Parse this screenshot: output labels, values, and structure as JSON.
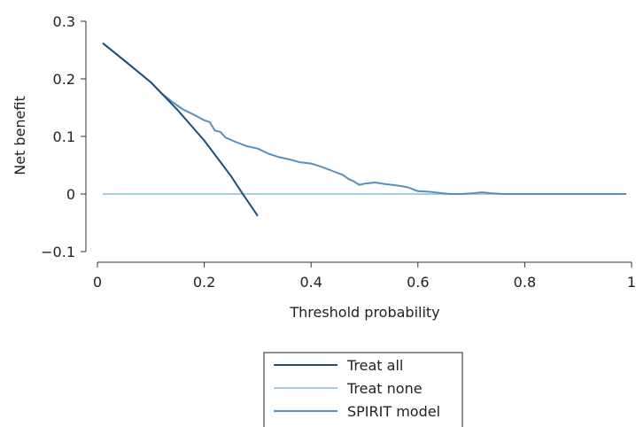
{
  "chart_data": {
    "type": "line",
    "title": "",
    "xlabel": "Threshold probability",
    "ylabel": "Net benefit",
    "xlim": [
      0,
      1
    ],
    "ylim": [
      -0.1,
      0.3
    ],
    "x_ticks": [
      0,
      0.2,
      0.4,
      0.6,
      0.8,
      1
    ],
    "x_tick_labels": [
      "0",
      "0.2",
      "0.4",
      "0.6",
      "0.8",
      "1"
    ],
    "y_ticks": [
      -0.1,
      0,
      0.1,
      0.2,
      0.3
    ],
    "y_tick_labels": [
      "−0.1",
      "0",
      "0.1",
      "0.2",
      "0.3"
    ],
    "grid": false,
    "legend_position": "bottom",
    "series": [
      {
        "name": "Treat all",
        "color": "#1f4e79",
        "x": [
          0.01,
          0.05,
          0.1,
          0.15,
          0.2,
          0.25,
          0.27,
          0.3
        ],
        "y": [
          0.262,
          0.232,
          0.194,
          0.146,
          0.093,
          0.031,
          0.003,
          -0.038
        ]
      },
      {
        "name": "Treat none",
        "color": "#a9cce3",
        "x": [
          0.01,
          0.99
        ],
        "y": [
          0,
          0
        ]
      },
      {
        "name": "SPIRIT model",
        "color": "#5b8fb9",
        "x": [
          0.01,
          0.05,
          0.1,
          0.12,
          0.14,
          0.16,
          0.18,
          0.2,
          0.21,
          0.22,
          0.23,
          0.24,
          0.26,
          0.28,
          0.3,
          0.32,
          0.34,
          0.36,
          0.38,
          0.4,
          0.42,
          0.44,
          0.46,
          0.47,
          0.48,
          0.49,
          0.5,
          0.52,
          0.54,
          0.56,
          0.58,
          0.6,
          0.62,
          0.64,
          0.66,
          0.68,
          0.7,
          0.72,
          0.74,
          0.76,
          0.8,
          0.85,
          0.9,
          0.95,
          0.99
        ],
        "y": [
          0.262,
          0.232,
          0.194,
          0.175,
          0.16,
          0.147,
          0.138,
          0.128,
          0.125,
          0.11,
          0.108,
          0.098,
          0.09,
          0.083,
          0.079,
          0.07,
          0.064,
          0.06,
          0.055,
          0.053,
          0.047,
          0.04,
          0.033,
          0.026,
          0.022,
          0.016,
          0.018,
          0.02,
          0.017,
          0.015,
          0.012,
          0.005,
          0.004,
          0.002,
          0.0,
          0.0,
          0.001,
          0.003,
          0.001,
          0.0,
          0.0,
          0.0,
          0.0,
          0.0,
          0.0
        ]
      }
    ]
  }
}
